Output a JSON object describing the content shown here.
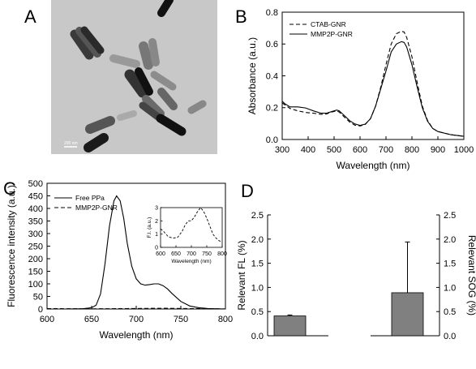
{
  "panels": {
    "A": {
      "letter": "A",
      "scale_bar_text": "200 nm"
    },
    "B": {
      "letter": "B"
    },
    "C": {
      "letter": "C"
    },
    "D": {
      "letter": "D"
    }
  },
  "chart_data": [
    {
      "panel": "B",
      "type": "line",
      "xlabel": "Wavelength (nm)",
      "ylabel": "Absorbance (a.u.)",
      "xlim": [
        300,
        1000
      ],
      "ylim": [
        0,
        0.8
      ],
      "xticks": [
        300,
        400,
        500,
        600,
        700,
        800,
        900,
        1000
      ],
      "yticks": [
        0.0,
        0.2,
        0.4,
        0.6,
        0.8
      ],
      "ytick_labels": [
        "0.0",
        "0.2",
        "0.4",
        "0.6",
        "0.8"
      ],
      "legend_position": "top-left",
      "grid": false,
      "series": [
        {
          "name": "CTAB-GNR",
          "style": "dashed",
          "x": [
            300,
            330,
            360,
            390,
            420,
            450,
            470,
            490,
            510,
            520,
            540,
            560,
            580,
            600,
            620,
            640,
            660,
            680,
            700,
            720,
            740,
            760,
            770,
            780,
            800,
            820,
            840,
            860,
            880,
            900,
            950,
            1000
          ],
          "y": [
            0.23,
            0.195,
            0.18,
            0.17,
            0.165,
            0.158,
            0.16,
            0.172,
            0.18,
            0.172,
            0.14,
            0.11,
            0.09,
            0.085,
            0.095,
            0.13,
            0.21,
            0.33,
            0.47,
            0.6,
            0.665,
            0.68,
            0.675,
            0.64,
            0.52,
            0.36,
            0.21,
            0.12,
            0.07,
            0.05,
            0.03,
            0.02
          ]
        },
        {
          "name": "MMP2P-GNR",
          "style": "solid",
          "x": [
            300,
            310,
            330,
            360,
            390,
            420,
            450,
            470,
            490,
            510,
            520,
            540,
            560,
            580,
            600,
            620,
            640,
            660,
            680,
            700,
            720,
            740,
            760,
            770,
            780,
            800,
            820,
            840,
            860,
            880,
            900,
            950,
            1000
          ],
          "y": [
            0.24,
            0.225,
            0.205,
            0.205,
            0.198,
            0.18,
            0.165,
            0.165,
            0.175,
            0.185,
            0.18,
            0.15,
            0.118,
            0.098,
            0.088,
            0.097,
            0.13,
            0.21,
            0.32,
            0.43,
            0.55,
            0.6,
            0.615,
            0.61,
            0.58,
            0.47,
            0.33,
            0.2,
            0.115,
            0.07,
            0.05,
            0.03,
            0.02
          ]
        }
      ]
    },
    {
      "panel": "C",
      "type": "line",
      "xlabel": "Wavelength (nm)",
      "ylabel": "Fluorescence intensity (a.u.)",
      "xlim": [
        600,
        800
      ],
      "ylim": [
        0,
        500
      ],
      "xticks": [
        600,
        650,
        700,
        750,
        800
      ],
      "yticks": [
        0,
        50,
        100,
        150,
        200,
        250,
        300,
        350,
        400,
        450,
        500
      ],
      "legend_position": "top-left",
      "grid": false,
      "series": [
        {
          "name": "Free PPa",
          "style": "solid",
          "x": [
            600,
            620,
            640,
            650,
            655,
            660,
            665,
            670,
            675,
            678,
            682,
            686,
            690,
            695,
            700,
            705,
            710,
            715,
            720,
            725,
            730,
            735,
            740,
            750,
            760,
            770,
            780,
            800
          ],
          "y": [
            0,
            0,
            1,
            5,
            15,
            60,
            180,
            330,
            430,
            450,
            430,
            360,
            260,
            170,
            120,
            100,
            95,
            97,
            100,
            100,
            93,
            80,
            62,
            30,
            12,
            5,
            2,
            0
          ]
        },
        {
          "name": "MMP2P-GNR",
          "style": "dashed",
          "x": [
            600,
            650,
            700,
            730,
            760,
            800
          ],
          "y": [
            1.5,
            0.7,
            2,
            3,
            1.5,
            0.4
          ]
        }
      ]
    },
    {
      "panel": "C-inset",
      "type": "line",
      "xlabel": "Wavelength (nm)",
      "ylabel": "F.I. (a.u.)",
      "xlim": [
        600,
        800
      ],
      "ylim": [
        0,
        3
      ],
      "xticks": [
        600,
        650,
        700,
        750,
        800
      ],
      "yticks": [
        0,
        1,
        2,
        3
      ],
      "series": [
        {
          "name": "MMP2P-GNR",
          "style": "dashed",
          "x": [
            600,
            610,
            625,
            640,
            655,
            670,
            680,
            690,
            700,
            710,
            720,
            730,
            740,
            750,
            760,
            770,
            780,
            790,
            800
          ],
          "y": [
            1.4,
            1.2,
            0.8,
            0.7,
            0.75,
            1.2,
            1.7,
            2.0,
            2.0,
            2.3,
            2.7,
            3.0,
            2.7,
            2.2,
            1.6,
            1.0,
            0.7,
            0.5,
            0.4
          ]
        }
      ]
    },
    {
      "panel": "D",
      "type": "bar",
      "ylabel_left": "Relevant FL (%)",
      "ylabel_right": "Relevant SOG (%)",
      "ylim": [
        0,
        2.5
      ],
      "yticks": [
        0.0,
        0.5,
        1.0,
        1.5,
        2.0,
        2.5
      ],
      "ytick_labels": [
        "0.0",
        "0.5",
        "1.0",
        "1.5",
        "2.0",
        "2.5"
      ],
      "bar_color": "#808080",
      "series": [
        {
          "axis": "left",
          "value": 0.41,
          "error": 0.02
        },
        {
          "axis": "right",
          "value": 0.89,
          "error": 1.05
        }
      ]
    }
  ]
}
